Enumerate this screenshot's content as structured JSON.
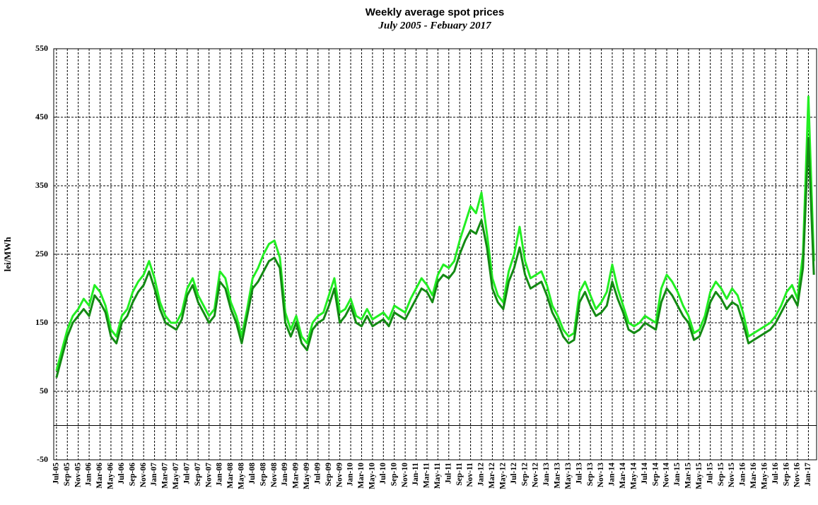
{
  "chart_data": {
    "type": "line",
    "title": "Weekly average spot prices",
    "subtitle": "July 2005 -  Febuary 2017",
    "y_label": "lei/MWh",
    "categories": [
      "Jul-05",
      null,
      "Sep-05",
      null,
      "Nov-05",
      null,
      "Jan-06",
      null,
      "Mar-06",
      null,
      "May-06",
      null,
      "Jul-06",
      null,
      "Sep-06",
      null,
      "Nov-06",
      null,
      "Jan-07",
      null,
      "Mar-07",
      null,
      "May-07",
      null,
      "Jul-07",
      null,
      "Sep-07",
      null,
      "Nov-07",
      null,
      "Jan-08",
      null,
      "Mar-08",
      null,
      "May-08",
      null,
      "Jul-08",
      null,
      "Sep-08",
      null,
      "Nov-08",
      null,
      "Jan-09",
      null,
      "Mar-09",
      null,
      "May-09",
      null,
      "Jul-09",
      null,
      "Sep-09",
      null,
      "Nov-09",
      null,
      "Jan-10",
      null,
      "Mar-10",
      null,
      "May-10",
      null,
      "Jul-10",
      null,
      "Sep-10",
      null,
      "Nov-10",
      null,
      "Jan-11",
      null,
      "Mar-11",
      null,
      "May-11",
      null,
      "Jul-11",
      null,
      "Sep-11",
      null,
      "Nov-11",
      null,
      "Jan-12",
      null,
      "Mar-12",
      null,
      "May-12",
      null,
      "Jul-12",
      null,
      "Sep-12",
      null,
      "Nov-12",
      null,
      "Jan-13",
      null,
      "Mar-13",
      null,
      "May-13",
      null,
      "Jul-13",
      null,
      "Sep-13",
      null,
      "Nov-13",
      null,
      "Jan-14",
      null,
      "Mar-14",
      null,
      "May-14",
      null,
      "Jul-14",
      null,
      "Sep-14",
      null,
      "Nov-14",
      null,
      "Jan-15",
      null,
      "Mar-15",
      null,
      "May-15",
      null,
      "Jul-15",
      null,
      "Sep-15",
      null,
      "Nov-15",
      null,
      "Jan-16",
      null,
      "Mar-16",
      null,
      "May-16",
      null,
      "Jul-16",
      null,
      "Sep-16",
      null,
      "Nov-16",
      null,
      "Jan-17",
      null
    ],
    "series": [
      {
        "color": "#22ee22",
        "values": [
          80,
          110,
          140,
          160,
          170,
          185,
          175,
          205,
          195,
          175,
          140,
          130,
          160,
          170,
          195,
          210,
          220,
          240,
          215,
          180,
          160,
          150,
          150,
          165,
          200,
          215,
          190,
          175,
          160,
          170,
          225,
          215,
          180,
          160,
          130,
          170,
          215,
          230,
          250,
          265,
          270,
          245,
          165,
          140,
          160,
          130,
          120,
          150,
          160,
          165,
          190,
          215,
          165,
          170,
          185,
          160,
          155,
          170,
          155,
          160,
          165,
          155,
          175,
          170,
          165,
          185,
          200,
          215,
          205,
          190,
          220,
          235,
          230,
          240,
          270,
          295,
          320,
          310,
          340,
          280,
          215,
          190,
          180,
          225,
          250,
          290,
          240,
          215,
          220,
          225,
          205,
          175,
          160,
          140,
          130,
          135,
          195,
          210,
          190,
          170,
          180,
          195,
          235,
          200,
          175,
          150,
          145,
          150,
          160,
          155,
          150,
          200,
          220,
          210,
          195,
          175,
          160,
          135,
          140,
          160,
          195,
          210,
          200,
          185,
          200,
          190,
          165,
          130,
          135,
          140,
          145,
          150,
          160,
          175,
          195,
          205,
          185,
          250,
          480,
          240
        ]
      },
      {
        "color": "#138a13",
        "values": [
          70,
          100,
          130,
          150,
          160,
          170,
          160,
          190,
          180,
          165,
          130,
          120,
          150,
          160,
          180,
          195,
          205,
          225,
          200,
          170,
          150,
          145,
          140,
          155,
          190,
          205,
          180,
          165,
          150,
          160,
          210,
          200,
          170,
          150,
          120,
          160,
          200,
          210,
          225,
          240,
          245,
          230,
          150,
          130,
          150,
          120,
          110,
          140,
          150,
          155,
          175,
          200,
          150,
          160,
          175,
          150,
          145,
          160,
          145,
          150,
          155,
          145,
          165,
          160,
          155,
          170,
          185,
          200,
          195,
          180,
          210,
          220,
          215,
          225,
          250,
          270,
          285,
          280,
          300,
          260,
          200,
          180,
          170,
          210,
          230,
          260,
          220,
          200,
          205,
          210,
          190,
          165,
          150,
          130,
          120,
          125,
          180,
          195,
          175,
          160,
          165,
          175,
          210,
          185,
          165,
          140,
          135,
          140,
          150,
          145,
          140,
          180,
          200,
          190,
          175,
          160,
          150,
          125,
          130,
          150,
          180,
          195,
          185,
          170,
          180,
          175,
          150,
          120,
          125,
          130,
          135,
          140,
          150,
          165,
          180,
          190,
          175,
          230,
          420,
          220
        ]
      }
    ],
    "ylim": [
      -50,
      550
    ],
    "yticks": [
      -50,
      50,
      150,
      250,
      350,
      450,
      550
    ],
    "grid": true
  }
}
